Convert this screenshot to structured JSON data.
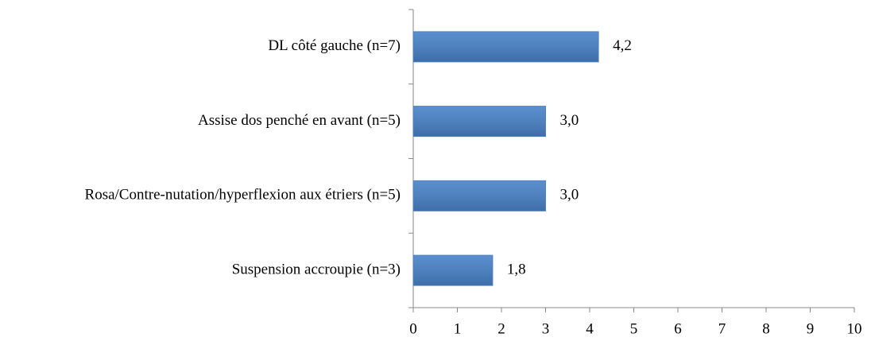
{
  "chart_data": {
    "type": "bar",
    "orientation": "horizontal",
    "categories": [
      "DL côté gauche (n=7)",
      "Assise dos penché en avant (n=5)",
      "Rosa/Contre-nutation/hyperflexion aux étriers (n=5)",
      "Suspension accroupie (n=3)"
    ],
    "values": [
      4.2,
      3.0,
      3.0,
      1.8
    ],
    "value_labels": [
      "4,2",
      "3,0",
      "3,0",
      "1,8"
    ],
    "color": "#4f81bd",
    "xlim": [
      0,
      10
    ],
    "xticks": [
      0,
      1,
      2,
      3,
      4,
      5,
      6,
      7,
      8,
      9,
      10
    ],
    "grid": false
  }
}
